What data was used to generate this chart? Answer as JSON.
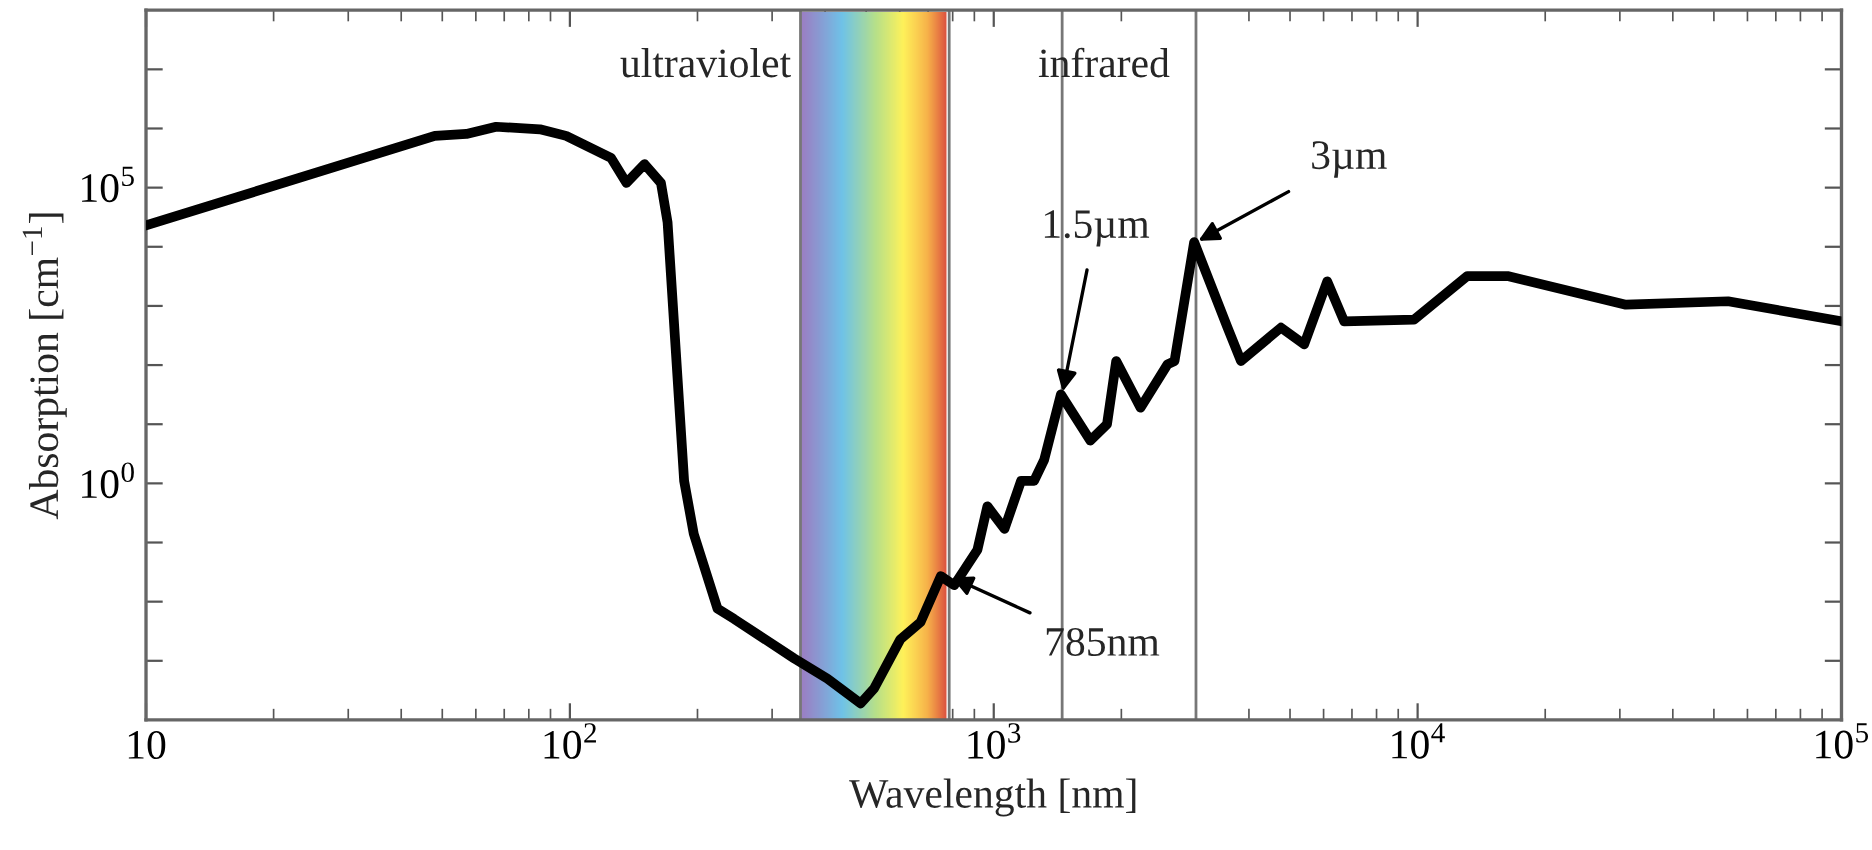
{
  "chart_data": {
    "type": "line",
    "xlabel": "Wavelength [nm]",
    "ylabel": "Absorption [cm$^{−1}$]",
    "log": "xy",
    "xlim": [
      10,
      100000
    ],
    "ylim": [
      0.0001,
      100000000
    ],
    "xticks": [
      10,
      {
        "value": 100,
        "label": "10$^{2}$"
      },
      {
        "value": 1000,
        "label": "10$^{3}$"
      },
      {
        "value": 10000,
        "label": "10$^{4}$"
      },
      {
        "value": 100000,
        "label": "10$^{5}$"
      }
    ],
    "yticks": [
      {
        "value": 0.001,
        "label": null
      },
      {
        "value": 0.01,
        "label": null
      },
      {
        "value": 0.1,
        "label": null
      },
      {
        "value": 1,
        "label": "10$^{0}$"
      },
      {
        "value": 10,
        "label": null
      },
      {
        "value": 100,
        "label": null
      },
      {
        "value": 1000,
        "label": null
      },
      {
        "value": 10000,
        "label": null
      },
      {
        "value": 100000,
        "label": "10$^{5}$"
      },
      {
        "value": 1000000,
        "label": null
      },
      {
        "value": 10000000,
        "label": null
      }
    ],
    "grid": false,
    "marker": "none",
    "line_style": "solid",
    "series": [
      {
        "color": "#000000",
        "x": [
          10,
          48,
          57,
          67,
          85,
          98,
          125,
          136,
          150,
          164,
          170,
          186,
          196,
          223,
          244,
          338,
          405,
          485,
          522,
          602,
          672,
          750,
          807,
          915,
          966,
          1060,
          1160,
          1245,
          1315,
          1440,
          1690,
          1850,
          1945,
          2220,
          2570,
          2670,
          2970,
          3560,
          3830,
          4760,
          5400,
          6120,
          6710,
          9800,
          13100,
          16300,
          31000,
          54000,
          100000
        ],
        "values": [
          23000,
          750000,
          810000,
          1070000,
          970000,
          750000,
          320000,
          120000,
          250000,
          120000,
          26000,
          1.1,
          0.14,
          0.0076,
          0.0051,
          0.0011,
          0.0005,
          0.00019,
          0.00034,
          0.0023,
          0.0045,
          0.027,
          0.019,
          0.075,
          0.41,
          0.17,
          1.1,
          1.1,
          2.5,
          32,
          5.3,
          10,
          117,
          19,
          103,
          117,
          12000,
          430,
          117,
          430,
          224,
          2600,
          550,
          585,
          3200,
          3200,
          1050,
          1200,
          550
        ]
      }
    ],
    "bands": [
      {
        "axis": "x",
        "from": 350,
        "to": 780
      }
    ],
    "ref_lines": [
      {
        "axis": "x",
        "value": 350
      },
      {
        "axis": "x",
        "value": 785
      },
      {
        "axis": "x",
        "value": 1450
      },
      {
        "axis": "x",
        "value": 3000
      }
    ],
    "annotations": [
      "ultraviolet",
      "infrared",
      {
        "text": "1.5µm",
        "x": 1450,
        "y": 32
      },
      {
        "text": "3µm",
        "x": 3000,
        "y": 12000
      },
      {
        "text": "785nm",
        "x": 785,
        "y": 0.027
      }
    ]
  }
}
